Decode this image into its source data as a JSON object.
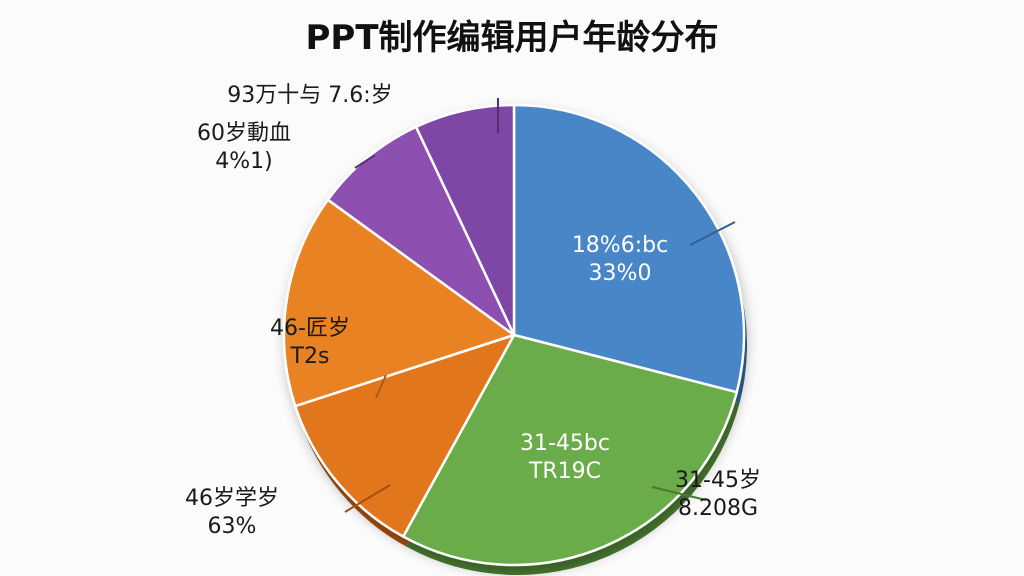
{
  "chart_data": {
    "type": "pie",
    "title": "PPT制作编辑用户年龄分布",
    "start_angle_deg": 0,
    "slices": [
      {
        "inside_lines": [
          "18%6:bc",
          "33%0"
        ],
        "outside_lines": [],
        "value": 29,
        "color": "#4a86c8",
        "side_color": "#2f5f94"
      },
      {
        "inside_lines": [
          "31-45bc",
          "TR19C"
        ],
        "outside_lines": [
          "31-45岁",
          "8.208G"
        ],
        "value": 29,
        "color": "#6aac4a",
        "side_color": "#487a31"
      },
      {
        "inside_lines": [],
        "outside_lines": [
          "46岁学岁",
          "63%"
        ],
        "value": 12,
        "color": "#e2761f",
        "side_color": "#a34f10"
      },
      {
        "inside_lines": [],
        "outside_lines": [
          "46-匠岁",
          "T2s"
        ],
        "value": 15,
        "color": "#e98224",
        "side_color": "#a85a16"
      },
      {
        "inside_lines": [],
        "outside_lines": [
          "60岁動血",
          "4%1)"
        ],
        "value": 8,
        "color": "#8d4fb0",
        "side_color": "#5c2f7a"
      },
      {
        "inside_lines": [],
        "outside_lines": [
          "93万十与 7.6:岁"
        ],
        "value": 7,
        "color": "#7e46a6",
        "side_color": "#552d73"
      }
    ]
  }
}
